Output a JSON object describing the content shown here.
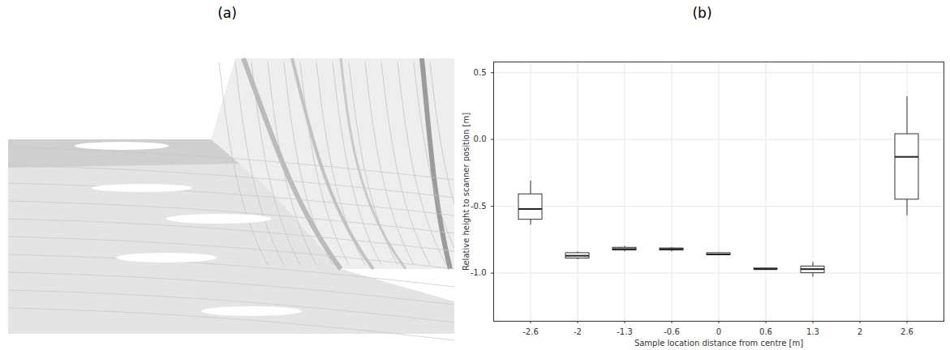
{
  "panel_labels": [
    "(a)",
    "(b)"
  ],
  "chart_data": {
    "type": "box",
    "x_label": "Sample location distance from centre [m]",
    "y_label": "Relative height to scanner position [m]",
    "categories": [
      "-2.6",
      "-2",
      "-1.3",
      "-0.6",
      "0",
      "0.6",
      "1.3",
      "2",
      "2.6"
    ],
    "min": [
      -0.64,
      -0.9,
      -0.84,
      -0.84,
      -0.87,
      -0.975,
      -1.03,
      null,
      -0.57
    ],
    "q1": [
      -0.6,
      -0.89,
      -0.83,
      -0.83,
      -0.865,
      -0.97,
      -1.0,
      null,
      -0.45
    ],
    "median": [
      -0.52,
      -0.87,
      -0.82,
      -0.82,
      -0.86,
      -0.97,
      -0.97,
      null,
      -0.13
    ],
    "q3": [
      -0.41,
      -0.85,
      -0.81,
      -0.815,
      -0.85,
      -0.965,
      -0.95,
      null,
      0.04
    ],
    "max": [
      -0.31,
      -0.84,
      -0.8,
      -0.81,
      -0.845,
      -0.96,
      -0.92,
      null,
      0.32
    ],
    "ylim": [
      -1.36,
      0.58
    ],
    "yticks": [
      {
        "value": -1,
        "label": "-1.0"
      },
      {
        "value": -0.5,
        "label": "-0.5"
      },
      {
        "value": 0,
        "label": "0.0"
      },
      {
        "value": 0.5,
        "label": "0.5"
      }
    ],
    "grid": true
  }
}
